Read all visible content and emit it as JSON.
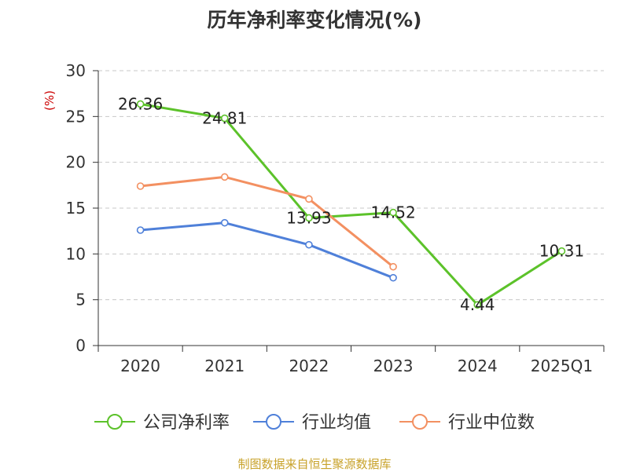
{
  "title": "历年净利率变化情况(%)",
  "source": "制图数据来自恒生聚源数据库",
  "chart_data": {
    "type": "line",
    "title": "历年净利率变化情况(%)",
    "ylabel": "(%)",
    "xlabel": "",
    "categories": [
      "2020",
      "2021",
      "2022",
      "2023",
      "2024",
      "2025Q1"
    ],
    "ylim": [
      0,
      30
    ],
    "yticks": [
      0,
      5,
      10,
      15,
      20,
      25,
      30
    ],
    "grid": true,
    "legend_position": "bottom",
    "series": [
      {
        "name": "公司净利率",
        "color": "#5cc22a",
        "show_labels": true,
        "values": [
          26.36,
          24.81,
          13.93,
          14.52,
          4.44,
          10.31
        ]
      },
      {
        "name": "行业均值",
        "color": "#4f80d9",
        "show_labels": false,
        "values": [
          12.6,
          13.4,
          11.0,
          7.4,
          null,
          null
        ]
      },
      {
        "name": "行业中位数",
        "color": "#f39061",
        "show_labels": false,
        "values": [
          17.4,
          18.4,
          16.0,
          8.6,
          null,
          null
        ]
      }
    ]
  }
}
